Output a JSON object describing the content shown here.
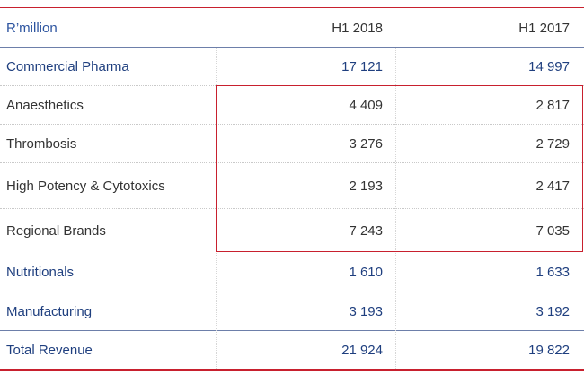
{
  "table": {
    "header": {
      "label": "R’million",
      "col1": "H1 2018",
      "col2": "H1 2017"
    },
    "rows": [
      {
        "label": "Commercial Pharma",
        "h1_2018": "17 121",
        "h1_2017": "14 997",
        "style": "blue"
      },
      {
        "label": "Anaesthetics",
        "h1_2018": "4 409",
        "h1_2017": "2 817",
        "style": "dark"
      },
      {
        "label": "Thrombosis",
        "h1_2018": "3 276",
        "h1_2017": "2 729",
        "style": "dark"
      },
      {
        "label": "High Potency & Cytotoxics",
        "h1_2018": "2 193",
        "h1_2017": "2 417",
        "style": "dark"
      },
      {
        "label": "Regional Brands",
        "h1_2018": "7 243",
        "h1_2017": "7 035",
        "style": "dark"
      },
      {
        "label": "Nutritionals",
        "h1_2018": "1 610",
        "h1_2017": "1 633",
        "style": "blue"
      },
      {
        "label": "Manufacturing",
        "h1_2018": "3 193",
        "h1_2017": "3 192",
        "style": "blue"
      },
      {
        "label": "Total Revenue",
        "h1_2018": "21 924",
        "h1_2017": "19 822",
        "style": "blue"
      }
    ]
  },
  "colors": {
    "accent_red": "#c8202e",
    "label_blue": "#1f3f7f",
    "text_dark": "#333333"
  }
}
